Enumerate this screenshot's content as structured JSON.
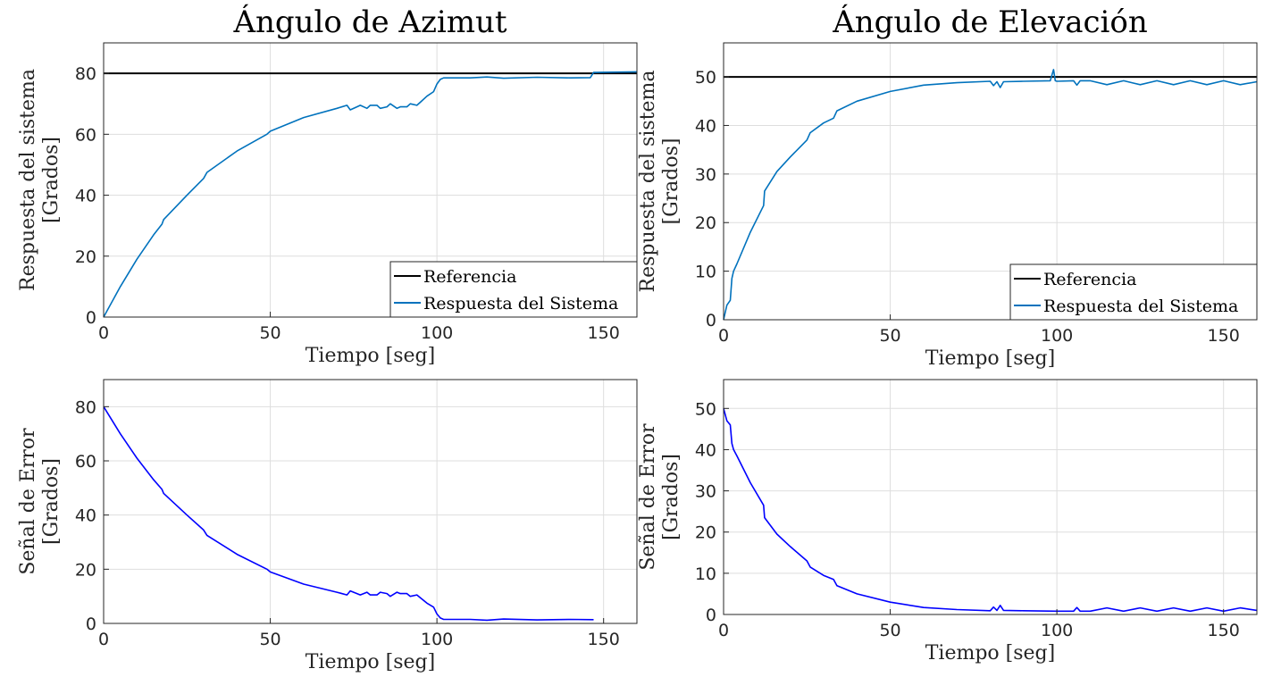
{
  "chart_data": [
    {
      "type": "line",
      "title": "Ángulo de Azimut",
      "xlabel": "Tiempo [seg]",
      "ylabel": [
        "Respuesta del sistema",
        "[Grados]"
      ],
      "xlim": [
        0,
        160
      ],
      "ylim": [
        0,
        90
      ],
      "xticks": [
        "0",
        "50",
        "100",
        "150"
      ],
      "yticks": [
        "0",
        "20",
        "40",
        "60",
        "80"
      ],
      "grid": true,
      "legend": {
        "position": "bottom-right",
        "entries": [
          "Referencia",
          "Respuesta del Sistema"
        ]
      },
      "series": [
        {
          "name": "Referencia",
          "color": "#000000",
          "x": [
            0,
            160
          ],
          "y": [
            80,
            80
          ]
        },
        {
          "name": "Respuesta del Sistema",
          "color": "#0072BD",
          "x": [
            0,
            5,
            10,
            15,
            17.5,
            18,
            25,
            30,
            31,
            40,
            49,
            50,
            60,
            70,
            73,
            74,
            76,
            77,
            79,
            80,
            82,
            83,
            85,
            86,
            88,
            89,
            91,
            92,
            94,
            95,
            97,
            99,
            100,
            101,
            102,
            110,
            115,
            120,
            130,
            140,
            146,
            147,
            148,
            160
          ],
          "y": [
            0,
            10,
            19,
            27,
            30.5,
            32,
            40,
            45.5,
            47.5,
            54.5,
            60,
            61,
            65.5,
            68.5,
            69.5,
            68,
            69,
            69.5,
            68.5,
            69.5,
            69.5,
            68.5,
            69,
            70,
            68.5,
            69,
            69,
            70,
            69.5,
            70.5,
            72.5,
            74,
            76.5,
            78,
            78.5,
            78.5,
            78.8,
            78.4,
            78.7,
            78.5,
            78.6,
            80.3,
            80.3,
            80.5
          ]
        }
      ]
    },
    {
      "type": "line",
      "title": "Ángulo de Elevación",
      "xlabel": "Tiempo [seg]",
      "ylabel": [
        "Respuesta del sistema",
        "[Grados]"
      ],
      "xlim": [
        0,
        160
      ],
      "ylim": [
        0,
        57
      ],
      "xticks": [
        "0",
        "50",
        "100",
        "150"
      ],
      "yticks": [
        "0",
        "10",
        "20",
        "30",
        "40",
        "50"
      ],
      "grid": true,
      "legend": {
        "position": "bottom-right",
        "entries": [
          "Referencia",
          "Respuesta del Sistema"
        ]
      },
      "series": [
        {
          "name": "Referencia",
          "color": "#000000",
          "x": [
            0,
            160
          ],
          "y": [
            50,
            50
          ]
        },
        {
          "name": "Respuesta del Sistema",
          "color": "#0072BD",
          "x": [
            0,
            1,
            2,
            2.5,
            3,
            4,
            8,
            12,
            12.3,
            16,
            20,
            25,
            26,
            30,
            33,
            34,
            40,
            50,
            60,
            70,
            80,
            81,
            82,
            83,
            84,
            90,
            98,
            99,
            99.5,
            100,
            105,
            106,
            107,
            110,
            115,
            120,
            125,
            130,
            135,
            140,
            145,
            150,
            155,
            160
          ],
          "y": [
            0,
            3,
            4,
            8.5,
            10,
            11.5,
            18,
            23.5,
            26.5,
            30.5,
            33.5,
            37,
            38.5,
            40.5,
            41.5,
            43,
            45,
            47,
            48.3,
            48.8,
            49.1,
            48.2,
            49,
            47.8,
            49,
            49.1,
            49.2,
            51.5,
            49.2,
            49.1,
            49.2,
            48.3,
            49.2,
            49.2,
            48.4,
            49.2,
            48.4,
            49.2,
            48.4,
            49.2,
            48.4,
            49.2,
            48.4,
            49
          ]
        }
      ]
    },
    {
      "type": "line",
      "title": "",
      "xlabel": "Tiempo [seg]",
      "ylabel": [
        "Señal de Error",
        "[Grados]"
      ],
      "xlim": [
        0,
        160
      ],
      "ylim": [
        0,
        90
      ],
      "xticks": [
        "0",
        "50",
        "100",
        "150"
      ],
      "yticks": [
        "0",
        "20",
        "40",
        "60",
        "80"
      ],
      "grid": true,
      "series": [
        {
          "color": "#0000FF",
          "x": [
            0,
            5,
            10,
            15,
            17.5,
            18,
            25,
            30,
            31,
            40,
            49,
            50,
            60,
            70,
            73,
            74,
            76,
            77,
            79,
            80,
            82,
            83,
            85,
            86,
            88,
            89,
            91,
            92,
            94,
            95,
            97,
            99,
            100,
            101,
            102,
            110,
            115,
            120,
            130,
            140,
            147
          ],
          "y": [
            80,
            70,
            61,
            53,
            49.5,
            48,
            40,
            34.5,
            32.5,
            25.5,
            20,
            19,
            14.5,
            11.5,
            10.5,
            12,
            11,
            10.5,
            11.5,
            10.5,
            10.5,
            11.5,
            11,
            10,
            11.5,
            11,
            11,
            10,
            10.5,
            9.5,
            7.5,
            6,
            3.5,
            2,
            1.5,
            1.5,
            1.2,
            1.6,
            1.3,
            1.5,
            1.4
          ]
        }
      ]
    },
    {
      "type": "line",
      "title": "",
      "xlabel": "Tiempo [seg]",
      "ylabel": [
        "Señal de Error",
        "[Grados]"
      ],
      "xlim": [
        0,
        160
      ],
      "ylim": [
        0,
        57
      ],
      "xticks": [
        "0",
        "50",
        "100",
        "150"
      ],
      "yticks": [
        "0",
        "10",
        "20",
        "30",
        "40",
        "50"
      ],
      "grid": true,
      "series": [
        {
          "color": "#0000FF",
          "x": [
            0,
            1,
            2,
            2.5,
            3,
            4,
            8,
            12,
            12.3,
            16,
            20,
            25,
            26,
            30,
            33,
            34,
            40,
            50,
            60,
            70,
            80,
            81,
            82,
            83,
            84,
            90,
            100,
            105,
            106,
            107,
            110,
            115,
            120,
            125,
            130,
            135,
            140,
            145,
            150,
            155,
            160
          ],
          "y": [
            50,
            47,
            46,
            41.5,
            40,
            38.5,
            32,
            26.5,
            23.5,
            19.5,
            16.5,
            13,
            11.5,
            9.5,
            8.5,
            7,
            5,
            3,
            1.7,
            1.2,
            0.9,
            1.8,
            1,
            2.2,
            1,
            0.9,
            0.8,
            0.8,
            1.7,
            0.8,
            0.8,
            1.6,
            0.8,
            1.6,
            0.8,
            1.6,
            0.8,
            1.6,
            0.8,
            1.6,
            1
          ]
        }
      ]
    }
  ]
}
